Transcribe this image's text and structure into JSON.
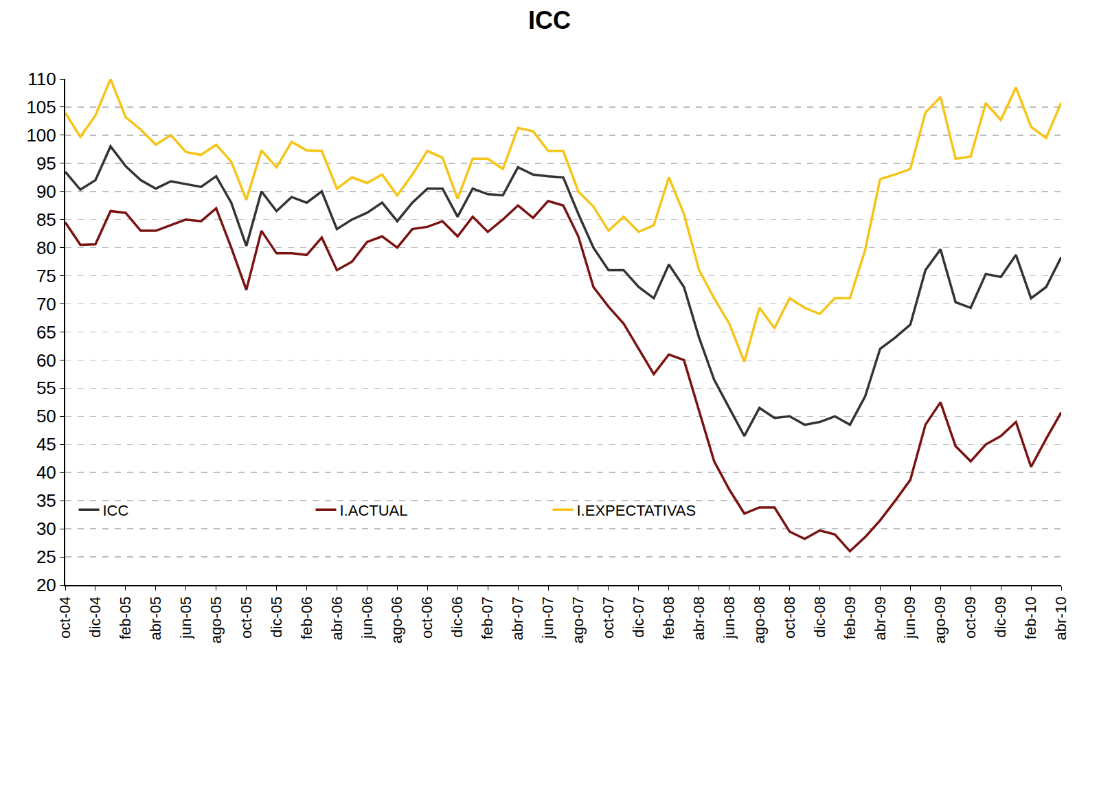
{
  "chart_data": {
    "type": "line",
    "title": "ICC",
    "categories": [
      "oct-04",
      null,
      "dic-04",
      null,
      "feb-05",
      null,
      "abr-05",
      null,
      "jun-05",
      null,
      "ago-05",
      null,
      "oct-05",
      null,
      "dic-05",
      null,
      "feb-06",
      null,
      "abr-06",
      null,
      "jun-06",
      null,
      "ago-06",
      null,
      "oct-06",
      null,
      "dic-06",
      null,
      "feb-07",
      null,
      "abr-07",
      null,
      "jun-07",
      null,
      "ago-07",
      null,
      "oct-07",
      null,
      "dic-07",
      null,
      "feb-08",
      null,
      "abr-08",
      null,
      "jun-08",
      null,
      "ago-08",
      null,
      "oct-08",
      null,
      "dic-08",
      null,
      "feb-09",
      null,
      "abr-09",
      null,
      "jun-09",
      null,
      "ago-09",
      null,
      "oct-09",
      null,
      "dic-09",
      null,
      "feb-10",
      null,
      "abr-10"
    ],
    "series": [
      {
        "name": "ICC",
        "color": "#333333",
        "line_style": "solid",
        "marker": "none",
        "values": [
          93.5,
          90.3,
          92,
          98,
          94.5,
          92,
          90.5,
          91.8,
          91.3,
          90.8,
          92.7,
          88,
          80.3,
          90,
          86.5,
          89,
          88,
          90,
          83.3,
          85,
          86.2,
          88,
          84.7,
          88,
          90.5,
          90.5,
          85.5,
          90.5,
          89.5,
          89.3,
          94.3,
          93,
          92.7,
          92.5,
          86,
          80,
          76,
          76,
          73,
          71,
          77,
          73,
          64,
          56.5,
          51.5,
          46.5,
          51.5,
          49.7,
          50,
          48.5,
          49,
          50,
          48.5,
          53.5,
          62,
          64,
          66.3,
          76,
          79.7,
          70.3,
          69.3,
          75.3,
          74.8,
          78.7,
          71,
          73,
          78.3
        ]
      },
      {
        "name": "I.ACTUAL",
        "color": "#7a1212",
        "line_style": "solid",
        "marker": "none",
        "values": [
          84.5,
          80.5,
          80.6,
          86.5,
          86.2,
          83,
          83,
          84,
          85,
          84.7,
          87,
          80,
          72.5,
          83,
          79,
          79,
          78.7,
          81.8,
          76,
          77.5,
          81,
          82,
          80,
          83.3,
          83.7,
          84.7,
          82,
          85.5,
          82.8,
          85,
          87.5,
          85.3,
          88.3,
          87.5,
          82,
          73,
          69.5,
          66.5,
          62,
          57.5,
          61,
          60,
          51,
          42,
          37,
          32.7,
          33.8,
          33.8,
          29.5,
          28.2,
          29.7,
          29,
          26,
          28.5,
          31.5,
          35,
          38.7,
          48.5,
          52.5,
          44.7,
          42,
          45,
          46.5,
          49,
          41,
          46,
          50.7
        ]
      },
      {
        "name": "I.EXPECTATIVAS",
        "color": "#f6c417",
        "line_style": "solid",
        "marker": "none",
        "values": [
          104,
          99.7,
          103.5,
          110,
          103.2,
          101,
          98.3,
          100,
          97,
          96.5,
          98.3,
          95.3,
          88.5,
          97.3,
          94.3,
          98.8,
          97.3,
          97.2,
          90.5,
          92.5,
          91.5,
          93,
          89.3,
          93,
          97.2,
          96,
          88.7,
          95.8,
          95.8,
          94,
          101.3,
          100.7,
          97.2,
          97.2,
          90,
          87.3,
          83,
          85.5,
          82.8,
          84,
          92.5,
          86,
          76,
          71,
          66.5,
          59.7,
          69.3,
          65.7,
          71,
          69.3,
          68.2,
          71,
          71,
          79.5,
          92.2,
          93,
          94,
          104,
          106.8,
          95.8,
          96.2,
          105.7,
          102.7,
          108.5,
          101.5,
          99.5,
          105.8
        ]
      }
    ],
    "ylim": [
      20,
      110
    ],
    "yticks": [
      20,
      25,
      30,
      35,
      40,
      45,
      50,
      55,
      60,
      65,
      70,
      75,
      80,
      85,
      90,
      95,
      100,
      105,
      110
    ],
    "grid": true,
    "legend": "lower left"
  }
}
